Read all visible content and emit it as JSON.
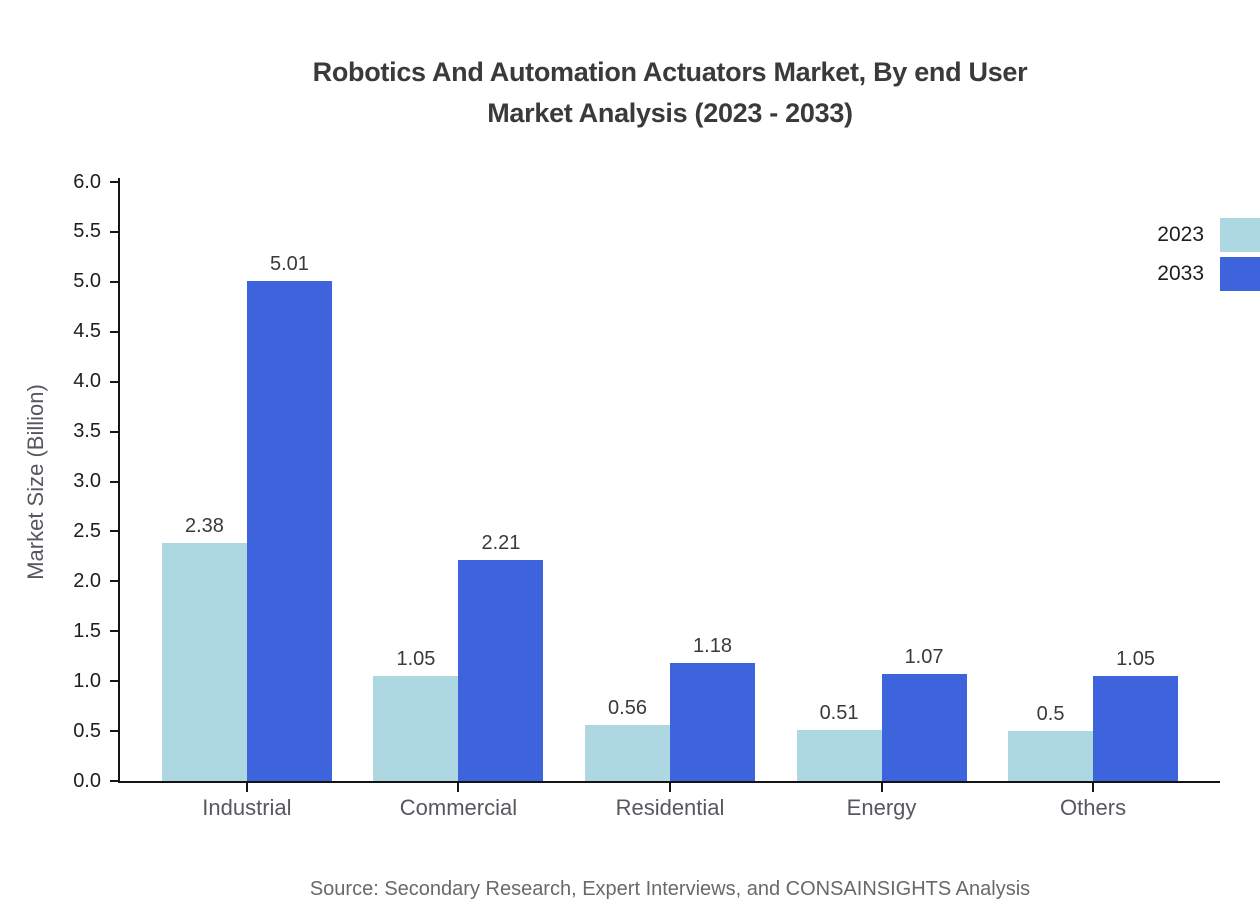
{
  "title": "Robotics And Automation Actuators Market, By end User\nMarket Analysis (2023 - 2033)",
  "source": "Source: Secondary Research, Expert Interviews, and CONSAINSIGHTS Analysis",
  "chart_data": {
    "type": "bar",
    "title": "Robotics And Automation Actuators Market, By end User Market Analysis (2023 - 2033)",
    "categories": [
      "Industrial",
      "Commercial",
      "Residential",
      "Energy",
      "Others"
    ],
    "series": [
      {
        "name": "2023",
        "color": "#ADD8E1",
        "values": [
          2.38,
          1.05,
          0.56,
          0.51,
          0.5
        ],
        "labels": [
          "2.38",
          "1.05",
          "0.56",
          "0.51",
          "0.5"
        ]
      },
      {
        "name": "2033",
        "color": "#3E64DD",
        "values": [
          5.01,
          2.21,
          1.18,
          1.07,
          1.05
        ],
        "labels": [
          "5.01",
          "2.21",
          "1.18",
          "1.07",
          "1.05"
        ]
      }
    ],
    "xlabel": "",
    "ylabel": "Market Size (Billion)",
    "ylim": [
      0,
      6
    ],
    "ytick_step": 0.5,
    "yticks": [
      "0.0",
      "0.5",
      "1.0",
      "1.5",
      "2.0",
      "2.5",
      "3.0",
      "3.5",
      "4.0",
      "4.5",
      "5.0",
      "5.5",
      "6.0"
    ],
    "grid": false,
    "legend_position": "top-right",
    "axis_color": "#141414",
    "label_color": "#3a3a3a",
    "tick_label_color": "#1e1e1e",
    "category_label_color": "#55585e"
  }
}
